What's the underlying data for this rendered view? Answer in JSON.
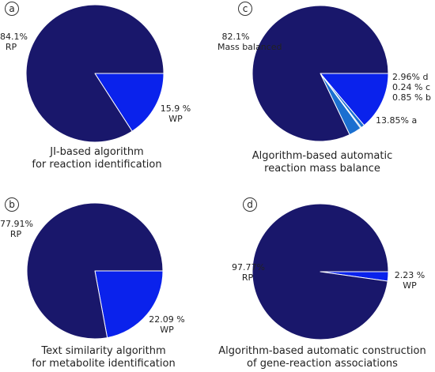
{
  "colors": {
    "dark": "#19176b",
    "bright": "#0a22ec",
    "light": "#1b6fd0",
    "edge": "#ffffff"
  },
  "chart_data": [
    {
      "type": "pie",
      "panel": "a",
      "caption_lines": [
        "JI-based algorithm",
        "for reaction identification"
      ],
      "slices": [
        {
          "pct_text": "84.1%",
          "name": "RP",
          "value": 84.1,
          "color": "dark"
        },
        {
          "pct_text": "15.9 %",
          "name": "WP",
          "value": 15.9,
          "color": "bright"
        }
      ]
    },
    {
      "type": "pie",
      "panel": "b",
      "caption_lines": [
        "Text similarity algorithm",
        "for metabolite identification"
      ],
      "slices": [
        {
          "pct_text": "77.91%",
          "name": "RP",
          "value": 77.91,
          "color": "dark"
        },
        {
          "pct_text": "22.09 %",
          "name": "WP",
          "value": 22.09,
          "color": "bright"
        }
      ]
    },
    {
      "type": "pie",
      "panel": "c",
      "caption_lines": [
        "Algorithm-based automatic",
        "reaction mass balance"
      ],
      "slices": [
        {
          "pct_text": "82.1%",
          "name": "Mass balanced",
          "value": 82.1,
          "color": "dark"
        },
        {
          "pct_text": "13.85%",
          "name": "a",
          "value": 13.85,
          "color": "bright"
        },
        {
          "pct_text": "0.85 %",
          "name": "b",
          "value": 0.85,
          "color": "light"
        },
        {
          "pct_text": "0.24 %",
          "name": "c",
          "value": 0.24,
          "color": "light"
        },
        {
          "pct_text": "2.96%",
          "name": "d",
          "value": 2.96,
          "color": "light"
        }
      ]
    },
    {
      "type": "pie",
      "panel": "d",
      "caption_lines": [
        "Algorithm-based automatic construction",
        "of gene-reaction associations"
      ],
      "slices": [
        {
          "pct_text": "97.77%",
          "name": "RP",
          "value": 97.77,
          "color": "dark"
        },
        {
          "pct_text": "2.23 %",
          "name": "WP",
          "value": 2.23,
          "color": "bright"
        }
      ]
    }
  ]
}
